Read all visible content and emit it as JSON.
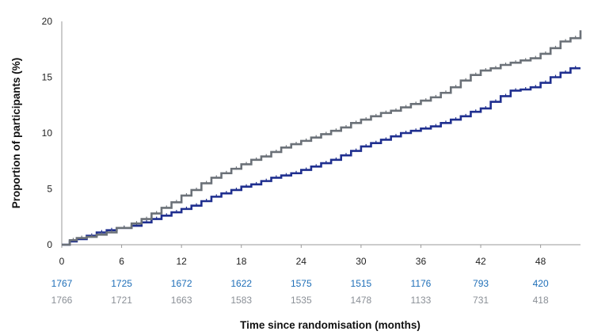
{
  "chart_data": {
    "type": "line",
    "title": "",
    "xlabel": "Time since randomisation (months)",
    "ylabel": "Proportion of participants (%)",
    "xlim": [
      0,
      52
    ],
    "ylim": [
      0,
      20
    ],
    "x_ticks": [
      0,
      6,
      12,
      18,
      24,
      30,
      36,
      42,
      48
    ],
    "y_ticks": [
      0,
      5,
      10,
      15,
      20
    ],
    "grid": false,
    "legend": "none",
    "series": [
      {
        "color": "#1f2f8f",
        "x": [
          0,
          0.8,
          1.5,
          2.5,
          3.5,
          4.5,
          5.5,
          7,
          8,
          9,
          10,
          11,
          12,
          13,
          14,
          15,
          16,
          17,
          18,
          19,
          20,
          21,
          22,
          23,
          24,
          25,
          26,
          27,
          28,
          29,
          30,
          31,
          32,
          33,
          34,
          35,
          36,
          37,
          38,
          39,
          40,
          41,
          42,
          43,
          44,
          45,
          46,
          47,
          48,
          49,
          50,
          51,
          52
        ],
        "y": [
          0,
          0.3,
          0.5,
          0.8,
          1.1,
          1.3,
          1.5,
          1.7,
          2.0,
          2.3,
          2.6,
          2.9,
          3.2,
          3.5,
          3.9,
          4.3,
          4.6,
          4.9,
          5.2,
          5.4,
          5.7,
          6.0,
          6.2,
          6.4,
          6.7,
          7.0,
          7.3,
          7.6,
          8.0,
          8.4,
          8.8,
          9.1,
          9.4,
          9.7,
          10.0,
          10.2,
          10.4,
          10.6,
          10.9,
          11.2,
          11.5,
          11.9,
          12.2,
          12.8,
          13.3,
          13.8,
          13.9,
          14.1,
          14.5,
          15.0,
          15.4,
          15.8,
          15.8
        ]
      },
      {
        "color": "#6b7178",
        "x": [
          0,
          0.8,
          1.5,
          2.5,
          3.5,
          4.5,
          5.5,
          7,
          8,
          9,
          10,
          11,
          12,
          13,
          14,
          15,
          16,
          17,
          18,
          19,
          20,
          21,
          22,
          23,
          24,
          25,
          26,
          27,
          28,
          29,
          30,
          31,
          32,
          33,
          34,
          35,
          36,
          37,
          38,
          39,
          40,
          41,
          42,
          43,
          44,
          45,
          46,
          47,
          48,
          49,
          50,
          51,
          52
        ],
        "y": [
          0,
          0.4,
          0.6,
          0.7,
          0.9,
          1.1,
          1.5,
          1.9,
          2.3,
          2.8,
          3.3,
          3.8,
          4.4,
          4.9,
          5.5,
          6.0,
          6.4,
          6.8,
          7.2,
          7.6,
          7.9,
          8.3,
          8.7,
          9.0,
          9.3,
          9.6,
          9.9,
          10.2,
          10.5,
          10.9,
          11.2,
          11.5,
          11.8,
          12.0,
          12.3,
          12.6,
          12.9,
          13.2,
          13.6,
          14.1,
          14.7,
          15.2,
          15.6,
          15.8,
          16.1,
          16.3,
          16.5,
          16.7,
          17.1,
          17.6,
          18.2,
          18.5,
          19.2
        ]
      }
    ],
    "numbers_at_risk": {
      "times": [
        0,
        6,
        12,
        18,
        24,
        30,
        36,
        42,
        48
      ],
      "rows": [
        {
          "color": "#1f6fb8",
          "values": [
            "1767",
            "1725",
            "1672",
            "1622",
            "1575",
            "1515",
            "1176",
            "793",
            "420"
          ]
        },
        {
          "color": "#8a8f96",
          "values": [
            "1766",
            "1721",
            "1663",
            "1583",
            "1535",
            "1478",
            "1133",
            "731",
            "418"
          ]
        }
      ]
    }
  }
}
